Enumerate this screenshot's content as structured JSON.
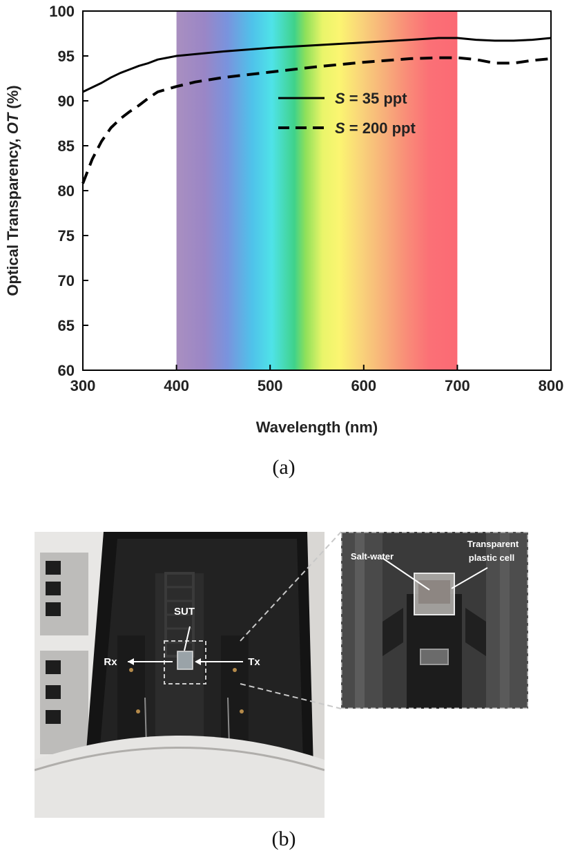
{
  "chart_data": {
    "type": "line",
    "xlabel": "Wavelength (nm)",
    "ylabel_parts": [
      "Optical Transparency, ",
      "OT",
      " (%)"
    ],
    "xlim": [
      300,
      800
    ],
    "ylim": [
      60,
      100
    ],
    "xticks": [
      300,
      400,
      500,
      600,
      700,
      800
    ],
    "yticks": [
      60,
      65,
      70,
      75,
      80,
      85,
      90,
      95,
      100
    ],
    "grid": false,
    "legend_position": "top-right",
    "visible_spectrum_band": [
      400,
      700
    ],
    "series": [
      {
        "name": "S = 35 ppt",
        "name_parts": [
          "S",
          " = 35 ppt"
        ],
        "style": "solid",
        "color": "#000000",
        "x": [
          300,
          310,
          320,
          330,
          340,
          350,
          360,
          370,
          380,
          390,
          400,
          420,
          450,
          500,
          550,
          600,
          650,
          680,
          700,
          720,
          740,
          760,
          780,
          800
        ],
        "y": [
          91.0,
          91.5,
          92.0,
          92.6,
          93.1,
          93.5,
          93.9,
          94.2,
          94.6,
          94.8,
          95.0,
          95.2,
          95.5,
          95.9,
          96.2,
          96.5,
          96.8,
          97.0,
          97.0,
          96.8,
          96.7,
          96.7,
          96.8,
          97.0
        ]
      },
      {
        "name": "S = 200 ppt",
        "name_parts": [
          "S",
          " = 200 ppt"
        ],
        "style": "dashed",
        "color": "#000000",
        "x": [
          300,
          310,
          320,
          330,
          340,
          350,
          360,
          370,
          380,
          390,
          400,
          420,
          450,
          500,
          550,
          600,
          650,
          680,
          700,
          720,
          740,
          760,
          780,
          800
        ],
        "y": [
          80.8,
          83.5,
          85.5,
          87.0,
          88.0,
          88.8,
          89.5,
          90.3,
          91.0,
          91.3,
          91.6,
          92.1,
          92.6,
          93.2,
          93.8,
          94.3,
          94.7,
          94.8,
          94.8,
          94.6,
          94.2,
          94.2,
          94.5,
          94.7
        ]
      }
    ]
  },
  "panel_labels": {
    "a": "(a)",
    "b": "(b)"
  },
  "photo": {
    "labels": {
      "sut": "SUT",
      "rx": "Rx",
      "tx": "Tx"
    },
    "zoom_labels": {
      "salt_water": "Salt-water",
      "cell_line1": "Transparent",
      "cell_line2": "plastic cell"
    }
  }
}
